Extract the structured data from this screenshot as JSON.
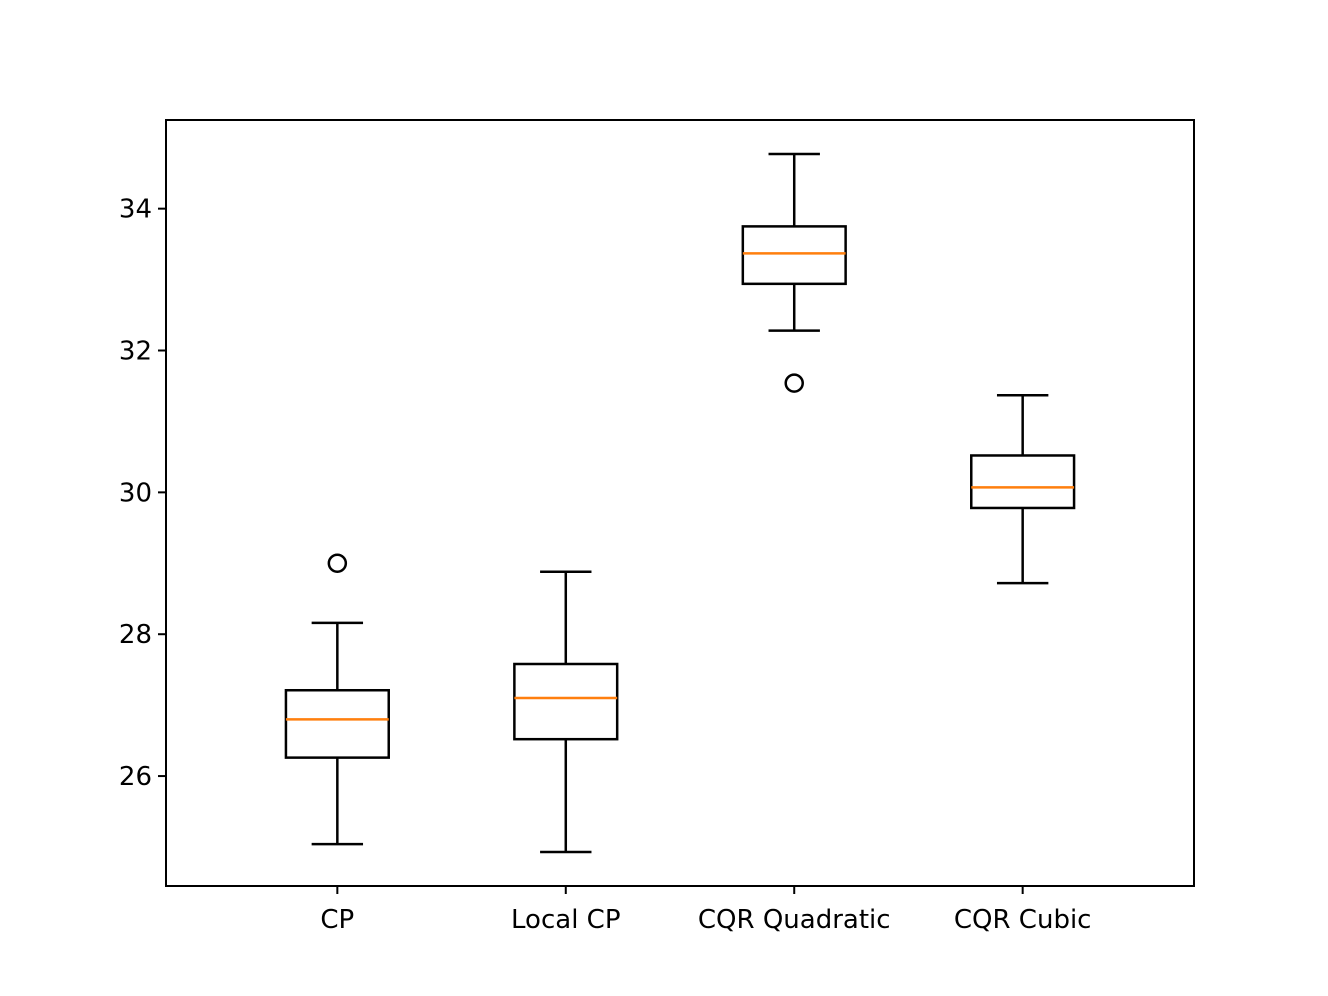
{
  "chart_data": {
    "type": "box",
    "title": "",
    "xlabel": "",
    "ylabel": "",
    "categories": [
      "CP",
      "Local CP",
      "CQR Quadratic",
      "CQR Cubic"
    ],
    "ylim": [
      24.45,
      35.25
    ],
    "yticks": [
      26,
      28,
      30,
      32,
      34
    ],
    "ytick_labels": [
      "26",
      "28",
      "30",
      "32",
      "34"
    ],
    "grid": false,
    "boxes": [
      {
        "label": "CP",
        "whislo": 25.04,
        "q1": 26.26,
        "med": 26.8,
        "q3": 27.21,
        "whishi": 28.16,
        "fliers": [
          29.0
        ]
      },
      {
        "label": "Local CP",
        "whislo": 24.93,
        "q1": 26.52,
        "med": 27.1,
        "q3": 27.58,
        "whishi": 28.88,
        "fliers": []
      },
      {
        "label": "CQR Quadratic",
        "whislo": 32.28,
        "q1": 32.94,
        "med": 33.37,
        "q3": 33.75,
        "whishi": 34.77,
        "fliers": [
          31.54
        ]
      },
      {
        "label": "CQR Cubic",
        "whislo": 28.72,
        "q1": 29.78,
        "med": 30.07,
        "q3": 30.52,
        "whishi": 31.37,
        "fliers": []
      }
    ],
    "colors": {
      "box": "#000000",
      "median": "#ff7f0e",
      "flier": "#000000"
    }
  }
}
